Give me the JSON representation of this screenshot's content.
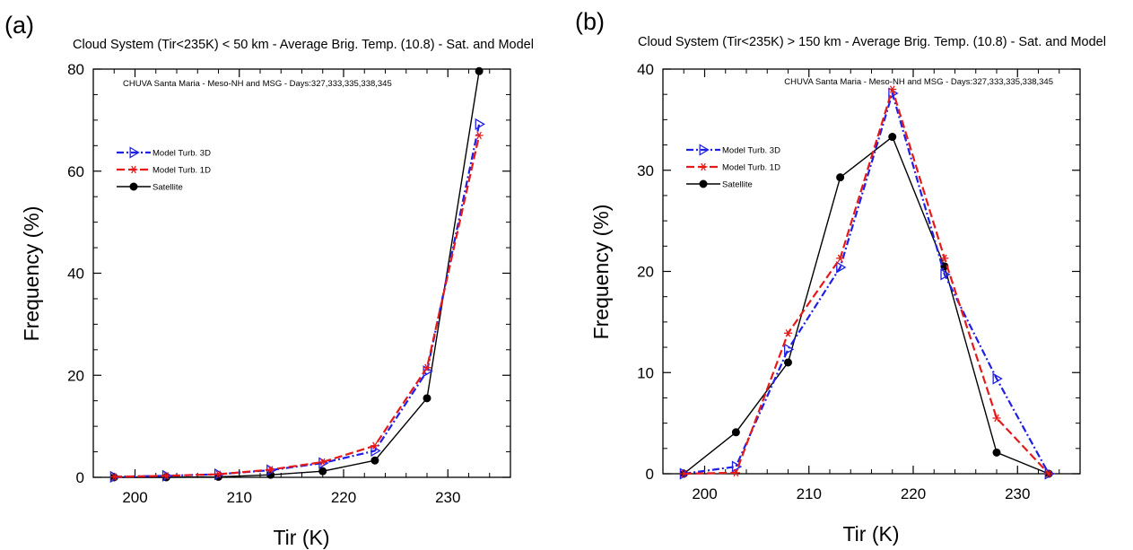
{
  "figure": {
    "colors": {
      "model_3d": "#1f1fe6",
      "model_1d": "#e61919",
      "satellite": "#000000",
      "axes": "#000000"
    }
  },
  "chart_data": [
    {
      "panel_label": "(a)",
      "type": "line",
      "title": "Cloud System (Tir<235K) < 50 km - Average Brig. Temp. (10.8) - Sat. and Model",
      "annotation": "CHUVA Santa Maria - Meso-NH and MSG - Days:327,333,335,338,345",
      "xlabel": "Tir (K)",
      "ylabel": "Frequency (%)",
      "xlim": [
        196,
        236
      ],
      "ylim": [
        0,
        80
      ],
      "xticks": [
        200,
        210,
        220,
        230
      ],
      "yticks": [
        0,
        20,
        40,
        60,
        80
      ],
      "legend_position": "upper-left",
      "x": [
        198,
        203,
        208,
        213,
        218,
        223,
        228,
        233
      ],
      "series": [
        {
          "name": "Model Turb. 3D",
          "marker": "triangle-right",
          "dash": "dash-dot",
          "color_key": "model_3d",
          "values": [
            0.1,
            0.3,
            0.6,
            1.4,
            2.8,
            5.2,
            20.8,
            69.2
          ]
        },
        {
          "name": "Model Turb. 1D",
          "marker": "asterisk",
          "dash": "dash",
          "color_key": "model_1d",
          "values": [
            0.1,
            0.3,
            0.6,
            1.5,
            3.0,
            6.2,
            21.5,
            67.0
          ]
        },
        {
          "name": "Satellite",
          "marker": "circle",
          "dash": "solid",
          "color_key": "satellite",
          "values": [
            0.0,
            0.0,
            0.1,
            0.5,
            1.2,
            3.3,
            15.5,
            79.6
          ]
        }
      ]
    },
    {
      "panel_label": "(b)",
      "type": "line",
      "title": "Cloud System (Tir<235K) > 150 km - Average Brig. Temp. (10.8) - Sat. and Model",
      "annotation": "CHUVA Santa Maria - Meso-NH and MSG - Days:327,333,335,338,345",
      "xlabel": "Tir (K)",
      "ylabel": "Frequency (%)",
      "xlim": [
        196,
        236
      ],
      "ylim": [
        0,
        40
      ],
      "xticks": [
        200,
        210,
        220,
        230
      ],
      "yticks": [
        0,
        10,
        20,
        30,
        40
      ],
      "legend_position": "upper-left",
      "x": [
        198,
        203,
        208,
        213,
        218,
        223,
        228,
        233
      ],
      "series": [
        {
          "name": "Model Turb. 3D",
          "marker": "triangle-right",
          "dash": "dash-dot",
          "color_key": "model_3d",
          "values": [
            0.0,
            0.7,
            12.3,
            20.4,
            37.6,
            19.7,
            9.4,
            0.0
          ]
        },
        {
          "name": "Model Turb. 1D",
          "marker": "asterisk",
          "dash": "dash",
          "color_key": "model_1d",
          "values": [
            0.0,
            0.1,
            13.9,
            21.3,
            38.0,
            21.3,
            5.5,
            0.0
          ]
        },
        {
          "name": "Satellite",
          "marker": "circle",
          "dash": "solid",
          "color_key": "satellite",
          "values": [
            0.0,
            4.1,
            11.0,
            29.3,
            33.3,
            20.5,
            2.1,
            0.0
          ]
        }
      ]
    }
  ]
}
